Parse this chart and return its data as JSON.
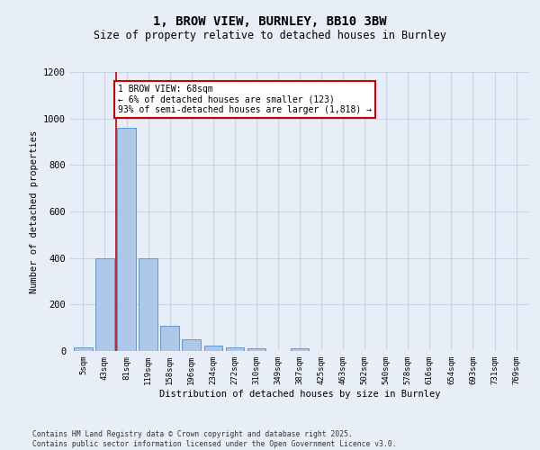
{
  "title_line1": "1, BROW VIEW, BURNLEY, BB10 3BW",
  "title_line2": "Size of property relative to detached houses in Burnley",
  "xlabel": "Distribution of detached houses by size in Burnley",
  "ylabel": "Number of detached properties",
  "categories": [
    "5sqm",
    "43sqm",
    "81sqm",
    "119sqm",
    "158sqm",
    "196sqm",
    "234sqm",
    "272sqm",
    "310sqm",
    "349sqm",
    "387sqm",
    "425sqm",
    "463sqm",
    "502sqm",
    "540sqm",
    "578sqm",
    "616sqm",
    "654sqm",
    "693sqm",
    "731sqm",
    "769sqm"
  ],
  "values": [
    15,
    400,
    960,
    400,
    110,
    50,
    25,
    15,
    10,
    0,
    10,
    0,
    0,
    0,
    0,
    0,
    0,
    0,
    0,
    0,
    0
  ],
  "bar_color": "#aec6e8",
  "bar_edge_color": "#5b9bd5",
  "grid_color": "#c8d4e8",
  "background_color": "#e8eef8",
  "vline_x": 1.5,
  "annotation_text": "1 BROW VIEW: 68sqm\n← 6% of detached houses are smaller (123)\n93% of semi-detached houses are larger (1,818) →",
  "annotation_box_color": "#ffffff",
  "annotation_border_color": "#cc0000",
  "vline_color": "#cc0000",
  "ylim": [
    0,
    1200
  ],
  "yticks": [
    0,
    200,
    400,
    600,
    800,
    1000,
    1200
  ],
  "footer": "Contains HM Land Registry data © Crown copyright and database right 2025.\nContains public sector information licensed under the Open Government Licence v3.0."
}
